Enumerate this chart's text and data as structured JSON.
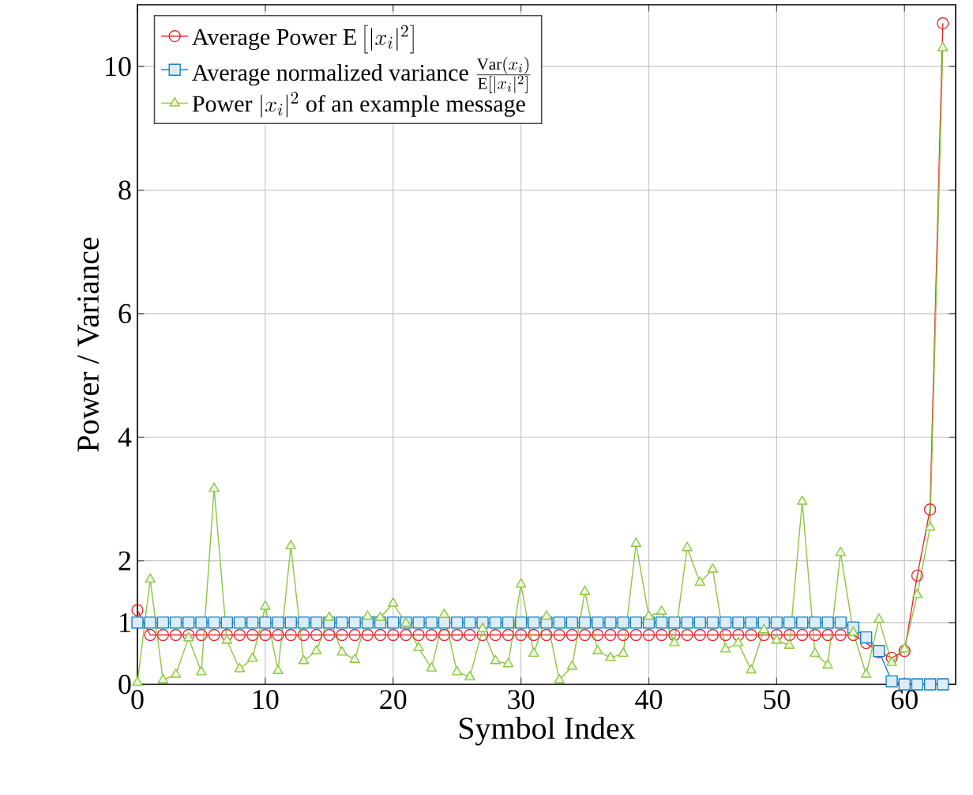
{
  "chart_data": {
    "type": "line",
    "xlabel": "Symbol Index",
    "ylabel": "Power / Variance",
    "xlim": [
      0,
      64
    ],
    "ylim": [
      0,
      11
    ],
    "xticks": [
      0,
      10,
      20,
      30,
      40,
      50,
      60
    ],
    "yticks": [
      0,
      1,
      2,
      4,
      6,
      8,
      10
    ],
    "grid": true,
    "legend": "top left",
    "x": [
      0,
      1,
      2,
      3,
      4,
      5,
      6,
      7,
      8,
      9,
      10,
      11,
      12,
      13,
      14,
      15,
      16,
      17,
      18,
      19,
      20,
      21,
      22,
      23,
      24,
      25,
      26,
      27,
      28,
      29,
      30,
      31,
      32,
      33,
      34,
      35,
      36,
      37,
      38,
      39,
      40,
      41,
      42,
      43,
      44,
      45,
      46,
      47,
      48,
      49,
      50,
      51,
      52,
      53,
      54,
      55,
      56,
      57,
      58,
      59,
      60,
      61,
      62,
      63
    ],
    "series": [
      {
        "name": "\\mbox{Average Power E} \\left[|x_i|^2\\right]",
        "color": "#e8282c",
        "marker": "circle",
        "values": [
          1.2,
          0.8,
          0.8,
          0.8,
          0.8,
          0.8,
          0.8,
          0.8,
          0.8,
          0.8,
          0.8,
          0.8,
          0.8,
          0.8,
          0.8,
          0.8,
          0.8,
          0.8,
          0.8,
          0.8,
          0.8,
          0.8,
          0.8,
          0.8,
          0.8,
          0.8,
          0.8,
          0.8,
          0.8,
          0.8,
          0.8,
          0.8,
          0.8,
          0.8,
          0.8,
          0.8,
          0.8,
          0.8,
          0.8,
          0.8,
          0.8,
          0.8,
          0.8,
          0.8,
          0.8,
          0.8,
          0.8,
          0.8,
          0.8,
          0.8,
          0.8,
          0.8,
          0.8,
          0.8,
          0.8,
          0.8,
          0.8,
          0.67,
          0.52,
          0.43,
          0.54,
          1.76,
          2.83,
          10.7
        ]
      },
      {
        "name": "\\mbox{Average normalized variance } \\frac{\\mathrm{Var}(x_i)}{\\mathrm{E}\\left[|x_i|^2\\right]}",
        "color": "#1a7fc1",
        "marker": "square",
        "values": [
          1.0,
          1.0,
          1.0,
          1.0,
          1.0,
          1.0,
          1.0,
          1.0,
          1.0,
          1.0,
          1.0,
          1.0,
          1.0,
          1.0,
          1.0,
          1.0,
          1.0,
          1.0,
          1.0,
          1.0,
          1.0,
          1.0,
          1.0,
          1.0,
          1.0,
          1.0,
          1.0,
          1.0,
          1.0,
          1.0,
          1.0,
          1.0,
          1.0,
          1.0,
          1.0,
          1.0,
          1.0,
          1.0,
          1.0,
          1.0,
          1.0,
          1.0,
          1.0,
          1.0,
          1.0,
          1.0,
          1.0,
          1.0,
          1.0,
          1.0,
          1.0,
          1.0,
          1.0,
          1.0,
          1.0,
          1.0,
          0.92,
          0.76,
          0.54,
          0.05,
          0.0,
          0.0,
          0.0,
          0.0
        ]
      },
      {
        "name": "\\mbox{Power } |x_i|^2 \\mbox{ of an example message}",
        "color": "#8cc63f",
        "marker": "triangle",
        "values": [
          0.03,
          1.7,
          0.07,
          0.16,
          0.75,
          0.2,
          3.17,
          0.71,
          0.25,
          0.42,
          1.26,
          0.22,
          2.24,
          0.38,
          0.54,
          1.08,
          0.52,
          0.4,
          1.1,
          1.08,
          1.31,
          0.99,
          0.59,
          0.26,
          1.13,
          0.2,
          0.12,
          0.9,
          0.38,
          0.33,
          1.62,
          0.5,
          1.1,
          0.07,
          0.29,
          1.5,
          0.54,
          0.43,
          0.5,
          2.28,
          1.1,
          1.18,
          0.67,
          2.21,
          1.65,
          1.86,
          0.57,
          0.67,
          0.23,
          0.88,
          0.71,
          0.63,
          2.96,
          0.5,
          0.31,
          2.13,
          0.84,
          0.16,
          1.05,
          0.35,
          0.57,
          1.45,
          2.54,
          10.3
        ]
      }
    ]
  }
}
